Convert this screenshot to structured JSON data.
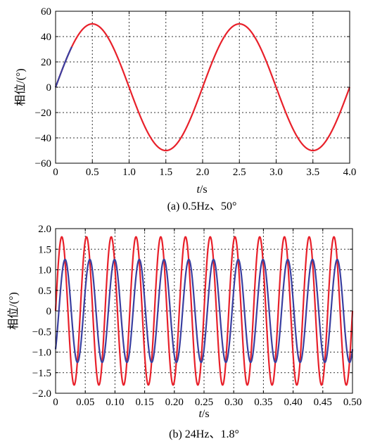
{
  "chart_data": [
    {
      "type": "line",
      "xlabel_italic": "t",
      "xlabel_unit": "/s",
      "ylabel": "相位/(°)",
      "caption": "(a)  0.5Hz、50°",
      "xlim": [
        0,
        4.0
      ],
      "ylim": [
        -60,
        60
      ],
      "xticks": [
        "0",
        "0.5",
        "1.0",
        "1.5",
        "2.0",
        "2.5",
        "3.0",
        "3.5",
        "4.0"
      ],
      "yticks": [
        "60",
        "40",
        "20",
        "0",
        "−20",
        "−40",
        "−60"
      ],
      "grid": true,
      "series": [
        {
          "color": "#e8202a",
          "kind": "sine",
          "amplitude": 50,
          "frequency_hz": 0.5,
          "x_range": [
            0,
            4.0
          ]
        },
        {
          "color": "#3a3fa0",
          "kind": "sine",
          "amplitude": 50,
          "frequency_hz": 0.5,
          "x_range": [
            0,
            0.22
          ]
        }
      ]
    },
    {
      "type": "line",
      "xlabel_italic": "t",
      "xlabel_unit": "/s",
      "ylabel": "相位/(°)",
      "caption": "(b)  24Hz、1.8°",
      "xlim": [
        0,
        0.5
      ],
      "ylim": [
        -2.0,
        2.0
      ],
      "xticks": [
        "0",
        "0.05",
        "0.10",
        "0.15",
        "0.20",
        "0.25",
        "0.30",
        "0.35",
        "0.40",
        "0.45",
        "0.50"
      ],
      "yticks": [
        "2.0",
        "1.5",
        "1.0",
        "0.5",
        "0",
        "−0.5",
        "−1.0",
        "−1.5",
        "−2.0"
      ],
      "grid": true,
      "series": [
        {
          "color": "#e8202a",
          "kind": "sine",
          "amplitude": 1.8,
          "frequency_hz": 24,
          "phase_deg": 0,
          "x_range": [
            0,
            0.5
          ]
        },
        {
          "color": "#3a3fa0",
          "kind": "sine",
          "amplitude": 1.25,
          "frequency_hz": 24,
          "phase_deg": -48,
          "x_range": [
            0,
            0.5
          ]
        }
      ]
    }
  ]
}
